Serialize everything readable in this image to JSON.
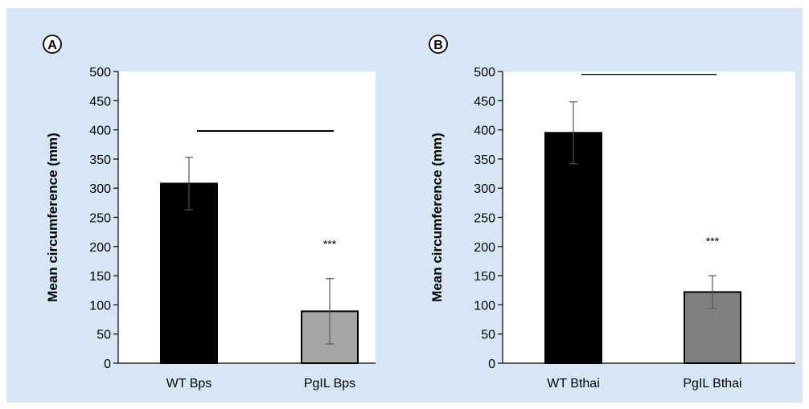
{
  "chart_data": [
    {
      "panel_label": "A",
      "type": "bar",
      "ylabel": "Mean circumference (mm)",
      "ylim": [
        0,
        500
      ],
      "yticks": [
        0,
        50,
        100,
        150,
        200,
        250,
        300,
        350,
        400,
        450,
        500
      ],
      "categories": [
        "WT Bps",
        "PgIL Bps"
      ],
      "values": [
        308,
        89
      ],
      "errors": [
        45,
        56
      ],
      "bar_colors": [
        "#000000",
        "#a6a6a6"
      ],
      "annotations": [
        "",
        "***"
      ],
      "bracket_y": 398,
      "grid": false,
      "legend": "none"
    },
    {
      "panel_label": "B",
      "type": "bar",
      "ylabel": "Mean circumference (mm)",
      "ylim": [
        0,
        500
      ],
      "yticks": [
        0,
        50,
        100,
        150,
        200,
        250,
        300,
        350,
        400,
        450,
        500
      ],
      "categories": [
        "WT Bthai",
        "PgIL Bthai"
      ],
      "values": [
        395,
        122
      ],
      "errors": [
        53,
        28
      ],
      "bar_colors": [
        "#000000",
        "#808080"
      ],
      "annotations": [
        "",
        "***"
      ],
      "bracket_y": 495,
      "grid": false,
      "legend": "none"
    }
  ]
}
